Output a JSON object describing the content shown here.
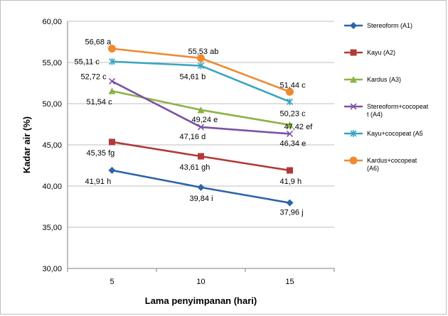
{
  "chart_data": {
    "type": "line",
    "title": "",
    "xlabel": "Lama penyimpanan (hari)",
    "ylabel": "Kadar air (%)",
    "x": [
      5,
      10,
      15
    ],
    "x_tick_labels": [
      "5",
      "10",
      "15"
    ],
    "ylim": [
      30,
      60
    ],
    "y_tick_labels": [
      "30,00",
      "35,00",
      "40,00",
      "45,00",
      "50,00",
      "55,00",
      "60,00"
    ],
    "grid": "horizontal major gridlines",
    "legend_position": "right",
    "series": [
      {
        "name": "Stereoform (A1)",
        "legend_lines": [
          "Stereoform (A1)"
        ],
        "values": [
          41.91,
          39.84,
          37.96
        ],
        "labels": [
          "41,91 h",
          "39,84 i",
          "37,96 j"
        ],
        "color": "#2E64A8",
        "marker": "diamond"
      },
      {
        "name": "Kayu (A2)",
        "legend_lines": [
          "Kayu (A2)"
        ],
        "values": [
          45.35,
          43.61,
          41.9
        ],
        "labels": [
          "45,35 fg",
          "43,61 gh",
          "41,9 h"
        ],
        "color": "#B03A3A",
        "marker": "square"
      },
      {
        "name": "Kardus (A3)",
        "legend_lines": [
          "Kardus (A3)"
        ],
        "values": [
          51.54,
          49.24,
          47.42
        ],
        "labels": [
          "51,54 c",
          "49,24 e",
          "47,42 ef"
        ],
        "color": "#8CB347",
        "marker": "triangle"
      },
      {
        "name": "Stereoform+cocopeat (A4)",
        "legend_lines": [
          "Stereoform+cocopeat",
          "t (A4)"
        ],
        "values": [
          52.72,
          47.16,
          46.34
        ],
        "labels": [
          "52,72 c",
          "47,16 d",
          "46,34 e"
        ],
        "color": "#7B52A3",
        "marker": "x"
      },
      {
        "name": "Kayu+cocopeat (A5)",
        "legend_lines": [
          "Kayu+cocopeat (A5"
        ],
        "values": [
          55.11,
          54.61,
          50.23
        ],
        "labels": [
          "55,11 c",
          "54,61 b",
          "50,23 c"
        ],
        "color": "#3AA5C0",
        "marker": "star"
      },
      {
        "name": "Kardus+cocopeat (A6)",
        "legend_lines": [
          "Kardus+cocopeat",
          "(A6)"
        ],
        "values": [
          56.68,
          55.53,
          51.44
        ],
        "labels": [
          "56,68 a",
          "55,53 ab",
          "51,44 c"
        ],
        "color": "#EE8A33",
        "marker": "circle"
      }
    ]
  }
}
